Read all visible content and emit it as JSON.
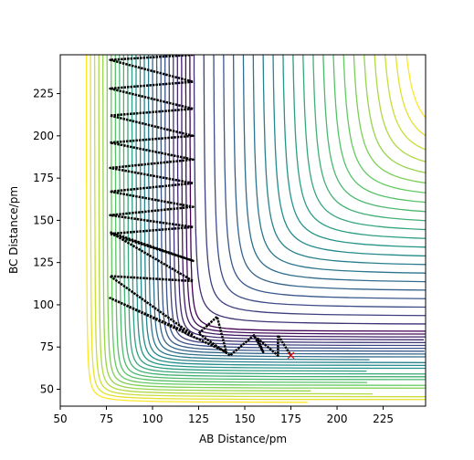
{
  "chart_data": {
    "type": "line",
    "x_label": "AB Distance/pm",
    "y_label": "BC Distance/pm",
    "xlim": [
      50,
      248
    ],
    "ylim": [
      40,
      248
    ],
    "xticks": [
      50,
      75,
      100,
      125,
      150,
      175,
      200,
      225
    ],
    "yticks": [
      50,
      75,
      100,
      125,
      150,
      175,
      200,
      225
    ],
    "series": [
      {
        "color": "#000000",
        "x": [
          122,
          77,
          122,
          77,
          122,
          77,
          122,
          77,
          122,
          77,
          122,
          77,
          122,
          77,
          122,
          77,
          122,
          77,
          122,
          77,
          122,
          77,
          140,
          135,
          125,
          142,
          155,
          160,
          157,
          168,
          168,
          175
        ],
        "values": [
          248,
          245,
          232,
          228,
          216,
          212,
          200,
          196,
          186,
          181,
          172,
          167,
          158,
          153,
          146,
          142,
          126,
          143,
          114,
          117,
          82,
          104,
          72,
          93,
          83,
          70,
          82,
          72,
          80,
          70,
          82,
          70
        ]
      }
    ],
    "end_marker": {
      "x": 175,
      "y": 70,
      "color": "#ff0000"
    }
  }
}
